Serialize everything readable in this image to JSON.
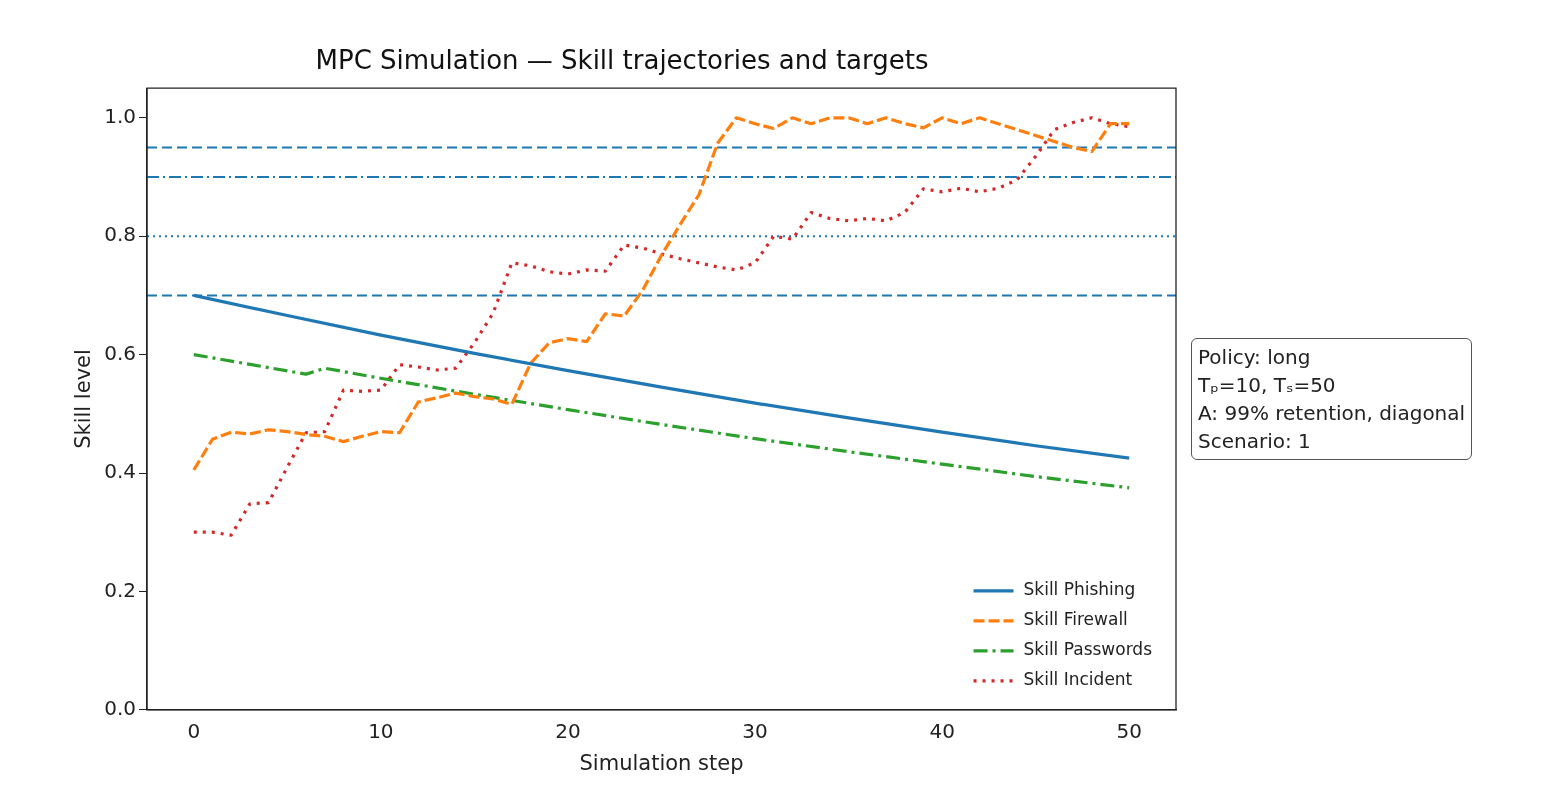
{
  "chart_data": {
    "type": "line",
    "title": "MPC Simulation — Skill trajectories and targets",
    "xlabel": "Simulation step",
    "ylabel": "Skill level",
    "xlim": [
      -2.5,
      52.5
    ],
    "xticks": [
      0,
      10,
      20,
      30,
      40,
      50
    ],
    "ylim": [
      0,
      1.05
    ],
    "yticks": [
      {
        "value": 0,
        "label": "0.0"
      },
      0.2,
      0.4,
      0.6,
      0.8,
      {
        "value": 1,
        "label": "1.0"
      }
    ],
    "grid": false,
    "legend": "bottom right",
    "marker": "none",
    "series": [
      {
        "name": "Skill Phishing",
        "color": "#1f77b4",
        "line_style": "solid",
        "x": [
          0,
          5,
          10,
          15,
          20,
          25,
          30,
          35,
          40,
          45,
          50
        ],
        "values": [
          0.7,
          0.666,
          0.633,
          0.602,
          0.573,
          0.545,
          0.518,
          0.493,
          0.469,
          0.446,
          0.425
        ]
      },
      {
        "name": "Skill Firewall",
        "color": "#ff7f0e",
        "line_style": "dashed",
        "x": [
          0,
          1,
          2,
          3,
          4,
          5,
          6,
          7,
          8,
          9,
          10,
          11,
          12,
          13,
          14,
          15,
          16,
          17,
          18,
          19,
          20,
          21,
          22,
          23,
          24,
          25,
          26,
          27,
          28,
          29,
          30,
          31,
          32,
          33,
          34,
          35,
          36,
          37,
          38,
          39,
          40,
          41,
          42,
          43,
          44,
          45,
          46,
          47,
          48,
          49,
          50
        ],
        "values": [
          0.405,
          0.457,
          0.469,
          0.466,
          0.473,
          0.47,
          0.465,
          0.462,
          0.453,
          0.462,
          0.47,
          0.468,
          0.52,
          0.527,
          0.535,
          0.529,
          0.525,
          0.516,
          0.585,
          0.62,
          0.627,
          0.622,
          0.669,
          0.665,
          0.709,
          0.768,
          0.82,
          0.87,
          0.957,
          1.0,
          0.99,
          0.982,
          1.0,
          0.99,
          1.0,
          1.0,
          0.99,
          1.0,
          0.99,
          0.983,
          1.0,
          0.99,
          1.0,
          0.99,
          0.98,
          0.97,
          0.96,
          0.95,
          0.943,
          0.99,
          0.99
        ]
      },
      {
        "name": "Skill Passwords",
        "color": "#2ca02c",
        "line_style": "dashdot",
        "x": [
          0,
          6,
          7,
          10,
          15,
          20,
          25,
          30,
          35,
          40,
          45,
          50
        ],
        "values": [
          0.6,
          0.567,
          0.577,
          0.56,
          0.533,
          0.507,
          0.482,
          0.458,
          0.436,
          0.415,
          0.394,
          0.375
        ]
      },
      {
        "name": "Skill Incident",
        "color": "#d62728",
        "line_style": "dotted",
        "x": [
          0,
          1,
          2,
          3,
          4,
          5,
          6,
          7,
          8,
          9,
          10,
          11,
          12,
          13,
          14,
          15,
          16,
          17,
          18,
          19,
          20,
          21,
          22,
          23,
          24,
          25,
          26,
          27,
          28,
          29,
          30,
          31,
          32,
          33,
          34,
          35,
          36,
          37,
          38,
          39,
          40,
          41,
          42,
          43,
          44,
          45,
          46,
          47,
          48,
          49,
          50
        ],
        "values": [
          0.3,
          0.3,
          0.295,
          0.348,
          0.35,
          0.41,
          0.468,
          0.47,
          0.54,
          0.538,
          0.54,
          0.583,
          0.579,
          0.574,
          0.577,
          0.62,
          0.67,
          0.755,
          0.75,
          0.74,
          0.736,
          0.743,
          0.741,
          0.785,
          0.78,
          0.77,
          0.762,
          0.755,
          0.748,
          0.743,
          0.755,
          0.8,
          0.795,
          0.84,
          0.83,
          0.826,
          0.83,
          0.826,
          0.84,
          0.88,
          0.875,
          0.881,
          0.875,
          0.881,
          0.895,
          0.935,
          0.98,
          0.992,
          1.0,
          0.99,
          0.985
        ]
      }
    ],
    "ref_lines": [
      {
        "axis": "y",
        "value": 0.95,
        "color": "#1f77b4",
        "line_style": "dashed"
      },
      {
        "axis": "y",
        "value": 0.9,
        "color": "#1f77b4",
        "line_style": "dashdot"
      },
      {
        "axis": "y",
        "value": 0.8,
        "color": "#1f77b4",
        "line_style": "dotted"
      },
      {
        "axis": "y",
        "value": 0.7,
        "color": "#1f77b4",
        "line_style": "dashed"
      }
    ],
    "annotations": [
      "Policy: long",
      "Tₚ=10, Tₛ=50",
      "A: 99% retention, diagonal",
      "Scenario: 1"
    ]
  }
}
